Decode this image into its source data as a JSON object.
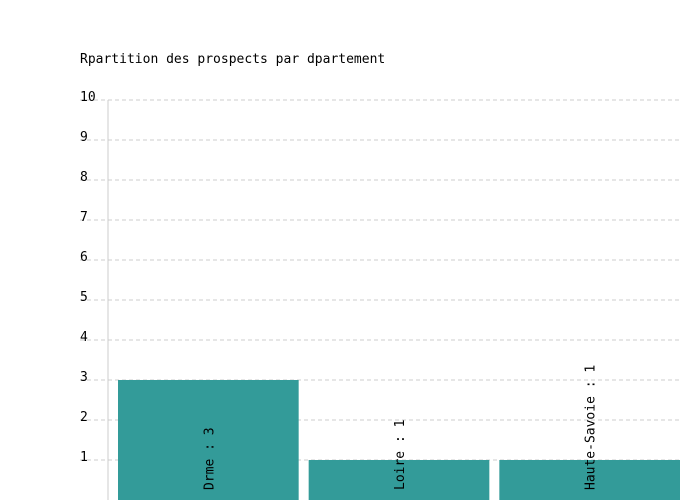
{
  "chart_data": {
    "type": "bar",
    "title": "Rpartition des prospects par dpartement",
    "categories": [
      "Drme",
      "Loire",
      "Haute-Savoie"
    ],
    "values": [
      3,
      1,
      1
    ],
    "bar_labels": [
      "Drme : 3",
      "Loire : 1",
      "Haute-Savoie : 1"
    ],
    "ylim": [
      0,
      10
    ],
    "yticks": [
      1,
      2,
      3,
      4,
      5,
      6,
      7,
      8,
      9,
      10
    ],
    "grid": true,
    "bar_color": "#339b99",
    "grid_color": "#cccccc"
  }
}
